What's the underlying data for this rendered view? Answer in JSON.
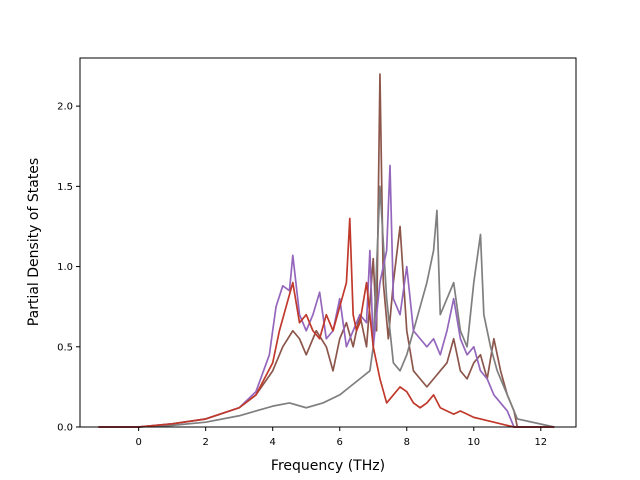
{
  "chart_data": {
    "type": "line",
    "title": "",
    "xlabel": "Frequency (THz)",
    "ylabel": "Partial Density of States",
    "xlim": [
      -1.75,
      13.05
    ],
    "ylim": [
      0,
      2.3
    ],
    "xticks": [
      0,
      2,
      4,
      6,
      8,
      10,
      12
    ],
    "xtick_labels": [
      "0",
      "2",
      "4",
      "6",
      "8",
      "10",
      "12"
    ],
    "yticks": [
      0,
      0.5,
      1.0,
      1.5,
      2.0
    ],
    "ytick_labels": [
      "0.0",
      "0.5",
      "1.0",
      "1.5",
      "2.0"
    ],
    "grid": false,
    "legend": "none",
    "series": [
      {
        "color": "#8c564b",
        "x": [
          -1.2,
          0,
          1,
          2,
          3,
          3.5,
          4,
          4.3,
          4.6,
          4.8,
          5.0,
          5.3,
          5.6,
          5.8,
          6.0,
          6.2,
          6.4,
          6.6,
          6.8,
          7.0,
          7.1,
          7.2,
          7.3,
          7.45,
          7.6,
          7.8,
          8.0,
          8.2,
          8.4,
          8.6,
          8.8,
          9.0,
          9.2,
          9.4,
          9.6,
          9.8,
          10.0,
          10.2,
          10.4,
          10.6,
          10.8,
          11.0,
          11.2,
          11.3,
          12.4
        ],
        "y": [
          0,
          0,
          0.02,
          0.05,
          0.12,
          0.2,
          0.35,
          0.5,
          0.6,
          0.55,
          0.45,
          0.6,
          0.5,
          0.35,
          0.55,
          0.65,
          0.5,
          0.7,
          0.5,
          1.05,
          0.6,
          2.2,
          0.9,
          0.55,
          0.9,
          1.25,
          0.6,
          0.35,
          0.3,
          0.25,
          0.3,
          0.35,
          0.4,
          0.55,
          0.35,
          0.3,
          0.4,
          0.45,
          0.3,
          0.55,
          0.35,
          0.2,
          0.1,
          0,
          0
        ]
      },
      {
        "color": "#7f7f7f",
        "x": [
          -1.2,
          0,
          1,
          2,
          3,
          3.5,
          4,
          4.5,
          5.0,
          5.5,
          6.0,
          6.3,
          6.6,
          6.9,
          7.0,
          7.2,
          7.4,
          7.6,
          7.8,
          8.0,
          8.2,
          8.4,
          8.6,
          8.8,
          8.9,
          9.0,
          9.2,
          9.4,
          9.6,
          9.8,
          10.0,
          10.2,
          10.3,
          10.5,
          10.7,
          10.9,
          11.1,
          11.3,
          12.4
        ],
        "y": [
          0,
          0,
          0.01,
          0.03,
          0.07,
          0.1,
          0.13,
          0.15,
          0.12,
          0.15,
          0.2,
          0.25,
          0.3,
          0.35,
          0.5,
          1.5,
          0.8,
          0.4,
          0.35,
          0.45,
          0.6,
          0.75,
          0.9,
          1.1,
          1.35,
          0.7,
          0.8,
          0.9,
          0.6,
          0.5,
          0.9,
          1.2,
          0.7,
          0.5,
          0.35,
          0.25,
          0.15,
          0.05,
          0
        ]
      },
      {
        "color": "#9467bd",
        "x": [
          -1.2,
          0,
          1,
          2,
          3,
          3.5,
          3.9,
          4.1,
          4.3,
          4.5,
          4.6,
          4.8,
          5.0,
          5.2,
          5.4,
          5.6,
          5.8,
          6.0,
          6.2,
          6.4,
          6.6,
          6.8,
          6.9,
          7.0,
          7.2,
          7.4,
          7.5,
          7.6,
          7.8,
          8.0,
          8.2,
          8.4,
          8.6,
          8.8,
          9.0,
          9.2,
          9.4,
          9.6,
          9.8,
          10.0,
          10.2,
          10.4,
          10.6,
          10.8,
          11.0,
          11.2,
          12.4
        ],
        "y": [
          0,
          0,
          0.02,
          0.05,
          0.12,
          0.22,
          0.45,
          0.75,
          0.88,
          0.85,
          1.07,
          0.7,
          0.6,
          0.7,
          0.84,
          0.55,
          0.6,
          0.8,
          0.5,
          0.6,
          0.7,
          0.65,
          1.1,
          0.5,
          0.9,
          1.1,
          1.63,
          0.8,
          0.7,
          1.0,
          0.6,
          0.55,
          0.5,
          0.55,
          0.45,
          0.6,
          0.8,
          0.55,
          0.45,
          0.5,
          0.35,
          0.3,
          0.2,
          0.15,
          0.1,
          0,
          0
        ]
      },
      {
        "color": "#c0392b",
        "x": [
          -1.2,
          0,
          1,
          2,
          3,
          3.5,
          4,
          4.2,
          4.4,
          4.6,
          4.8,
          5.0,
          5.2,
          5.4,
          5.6,
          5.8,
          6.0,
          6.2,
          6.3,
          6.4,
          6.5,
          6.6,
          6.8,
          7.0,
          7.2,
          7.4,
          7.6,
          7.8,
          8.0,
          8.2,
          8.4,
          8.6,
          8.8,
          9.0,
          9.2,
          9.4,
          9.6,
          9.8,
          10.0,
          10.2,
          10.4,
          10.6,
          10.8,
          11.0,
          11.2,
          12.4
        ],
        "y": [
          0,
          0,
          0.02,
          0.05,
          0.12,
          0.2,
          0.4,
          0.6,
          0.75,
          0.9,
          0.65,
          0.7,
          0.6,
          0.55,
          0.7,
          0.6,
          0.75,
          0.9,
          1.3,
          0.7,
          0.6,
          0.65,
          0.9,
          0.5,
          0.3,
          0.15,
          0.2,
          0.25,
          0.22,
          0.15,
          0.12,
          0.15,
          0.2,
          0.12,
          0.1,
          0.08,
          0.1,
          0.08,
          0.06,
          0.05,
          0.04,
          0.03,
          0.02,
          0.01,
          0,
          0
        ]
      }
    ]
  }
}
